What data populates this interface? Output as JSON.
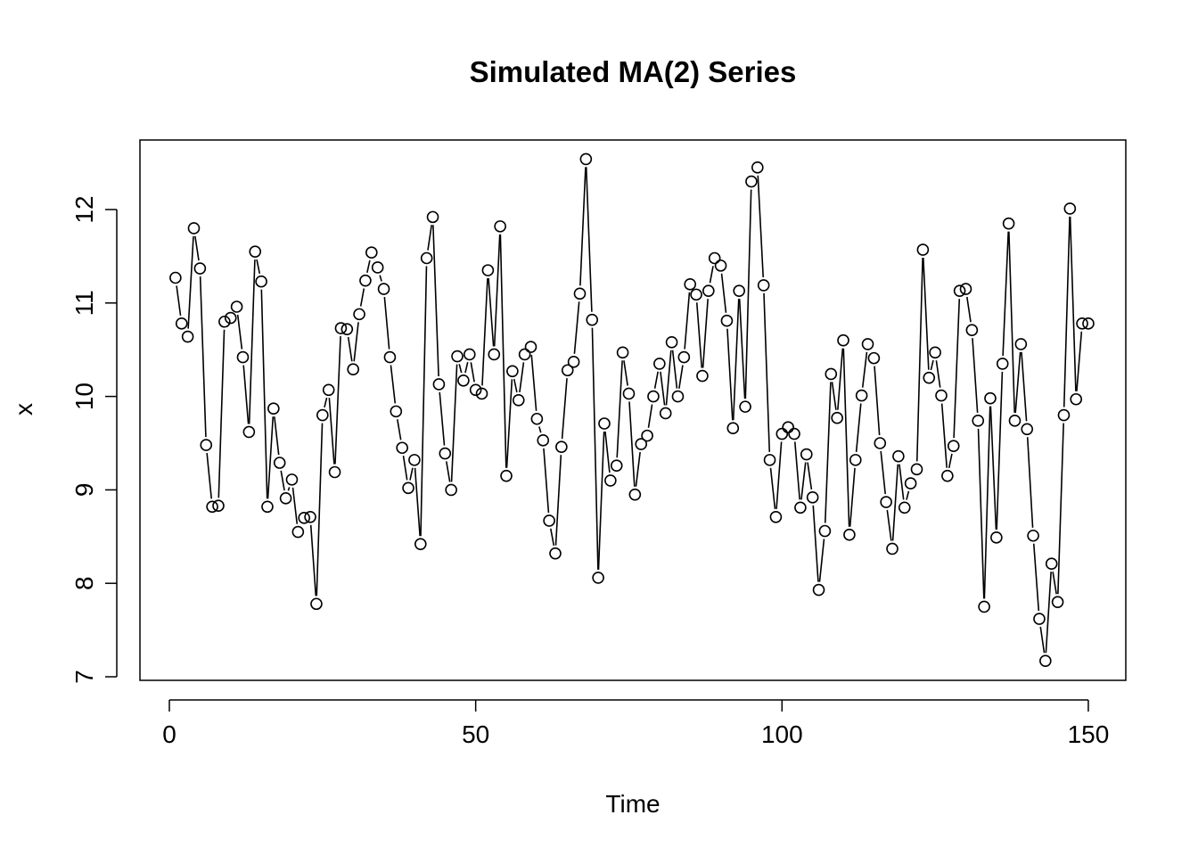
{
  "chart_data": {
    "type": "line",
    "title": "Simulated MA(2) Series",
    "xlabel": "Time",
    "ylabel": "x",
    "xlim": [
      1,
      150
    ],
    "ylim": [
      7.1,
      12.6
    ],
    "x_ticks": [
      "0",
      "50",
      "100",
      "150"
    ],
    "y_ticks": [
      "7",
      "8",
      "9",
      "10",
      "11",
      "12"
    ],
    "grid": false,
    "plot_style": "both (line with hollow circle points)",
    "line_color": "#000000",
    "point_color": "#000000",
    "series": [
      {
        "x_start": 1,
        "values": [
          11.27,
          10.78,
          10.64,
          11.8,
          11.37,
          9.48,
          8.82,
          8.83,
          10.8,
          10.84,
          10.96,
          10.42,
          9.62,
          11.55,
          11.23,
          8.82,
          9.87,
          9.29,
          8.91,
          9.11,
          8.55,
          8.7,
          8.71,
          7.78,
          9.8,
          10.07,
          9.19,
          10.73,
          10.72,
          10.29,
          10.88,
          11.24,
          11.54,
          11.38,
          11.15,
          10.42,
          9.84,
          9.45,
          9.02,
          9.32,
          8.42,
          11.48,
          11.92,
          10.13,
          9.39,
          9.0,
          10.43,
          10.17,
          10.45,
          10.07,
          10.03,
          11.35,
          10.45,
          11.82,
          9.15,
          10.27,
          9.96,
          10.45,
          10.53,
          9.76,
          9.53,
          8.67,
          8.32,
          9.46,
          10.28,
          10.37,
          11.1,
          12.54,
          10.82,
          8.06,
          9.71,
          9.1,
          9.26,
          10.47,
          10.03,
          8.95,
          9.49,
          9.58,
          10.0,
          10.35,
          9.82,
          10.58,
          10.0,
          10.42,
          11.2,
          11.09,
          10.22,
          11.13,
          11.48,
          11.4,
          10.81,
          9.66,
          11.13,
          9.89,
          12.3,
          12.45,
          11.19,
          9.32,
          8.71,
          9.6,
          9.67,
          9.6,
          8.81,
          9.38,
          8.92,
          7.93,
          8.56,
          10.24,
          9.77,
          10.6,
          8.52,
          9.32,
          10.01,
          10.56,
          10.41,
          9.5,
          8.87,
          8.37,
          9.36,
          8.81,
          9.07,
          9.22,
          11.57,
          10.2,
          10.47,
          10.01,
          9.15,
          9.47,
          11.13,
          11.15,
          10.71,
          9.74,
          7.75,
          9.98,
          8.49,
          10.35,
          11.85,
          9.74,
          10.56,
          9.65,
          8.51,
          7.62,
          7.17,
          8.21,
          7.8,
          9.8,
          12.01,
          9.97,
          10.78,
          10.78
        ]
      }
    ]
  }
}
